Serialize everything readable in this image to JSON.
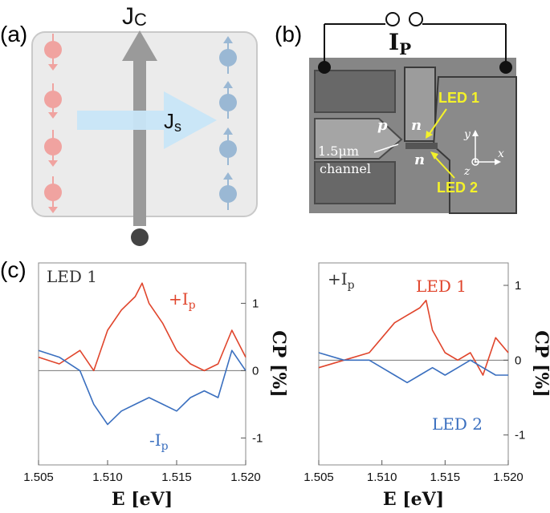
{
  "panel_labels": {
    "a": "(a)",
    "b": "(b)",
    "c": "(c)"
  },
  "panel_a": {
    "charge_current_label": "J",
    "charge_current_sub": "C",
    "spin_current_label": "J",
    "spin_current_sub": "s"
  },
  "panel_b": {
    "current_label": "I",
    "current_sub": "P",
    "region_p": "p",
    "region_n_upper": "n",
    "region_n_lower": "n",
    "led1_label": "LED 1",
    "led2_label": "LED 2",
    "channel_width": "1.5μm",
    "channel_word": "channel",
    "axis_x": "x",
    "axis_y": "y",
    "axis_z": "z"
  },
  "colors": {
    "red": "#e0452c",
    "blue": "#3a6fbf",
    "spin_red": "#f0a3a0",
    "spin_blue": "#9ab8d4",
    "arrow_gray": "#9a9a9a",
    "arrow_blue": "#c8e6f8"
  },
  "chart_data": [
    {
      "type": "line",
      "panel_label": "LED 1",
      "xlabel": "E [eV]",
      "ylabel": "CP [%]",
      "xlim": [
        1.505,
        1.52
      ],
      "ylim": [
        -1.4,
        1.6
      ],
      "xticks": [
        "1.505",
        "1.510",
        "1.515",
        "1.520"
      ],
      "yticks": [
        "1",
        "0",
        "-1"
      ],
      "ytick_values": [
        1,
        0,
        -1
      ],
      "series": [
        {
          "name": "+I",
          "name_sub": "p",
          "color": "red",
          "x": [
            1.505,
            1.5065,
            1.508,
            1.509,
            1.51,
            1.511,
            1.512,
            1.5125,
            1.513,
            1.514,
            1.515,
            1.516,
            1.517,
            1.518,
            1.519,
            1.52
          ],
          "y": [
            0.2,
            0.1,
            0.3,
            0.0,
            0.6,
            0.9,
            1.1,
            1.3,
            1.0,
            0.7,
            0.3,
            0.1,
            0.0,
            0.1,
            0.6,
            0.2
          ]
        },
        {
          "name": "-I",
          "name_sub": "p",
          "color": "blue",
          "x": [
            1.505,
            1.5065,
            1.508,
            1.509,
            1.51,
            1.511,
            1.512,
            1.513,
            1.514,
            1.515,
            1.516,
            1.517,
            1.518,
            1.519,
            1.52
          ],
          "y": [
            0.3,
            0.2,
            0.0,
            -0.5,
            -0.8,
            -0.6,
            -0.5,
            -0.4,
            -0.5,
            -0.6,
            -0.4,
            -0.3,
            -0.4,
            0.3,
            0.0
          ]
        }
      ]
    },
    {
      "type": "line",
      "panel_label": "+I",
      "panel_label_sub": "p",
      "xlabel": "E [eV]",
      "ylabel": "CP [%]",
      "xlim": [
        1.505,
        1.52
      ],
      "ylim": [
        -1.4,
        1.3
      ],
      "xticks": [
        "1.505",
        "1.510",
        "1.515",
        "1.520"
      ],
      "yticks": [
        "1",
        "0",
        "-1"
      ],
      "ytick_values": [
        1,
        0,
        -1
      ],
      "series": [
        {
          "name": "LED 1",
          "color": "red",
          "x": [
            1.505,
            1.507,
            1.509,
            1.51,
            1.511,
            1.512,
            1.513,
            1.5135,
            1.514,
            1.515,
            1.516,
            1.517,
            1.518,
            1.519,
            1.52
          ],
          "y": [
            -0.1,
            0.0,
            0.1,
            0.3,
            0.5,
            0.6,
            0.7,
            0.8,
            0.4,
            0.1,
            0.0,
            0.1,
            -0.2,
            0.3,
            0.1
          ]
        },
        {
          "name": "LED 2",
          "color": "blue",
          "x": [
            1.505,
            1.507,
            1.509,
            1.51,
            1.511,
            1.512,
            1.513,
            1.514,
            1.515,
            1.516,
            1.517,
            1.518,
            1.519,
            1.52
          ],
          "y": [
            0.1,
            0.0,
            0.0,
            -0.1,
            -0.2,
            -0.3,
            -0.2,
            -0.1,
            -0.2,
            -0.1,
            0.0,
            -0.1,
            -0.2,
            -0.2
          ]
        }
      ]
    }
  ]
}
